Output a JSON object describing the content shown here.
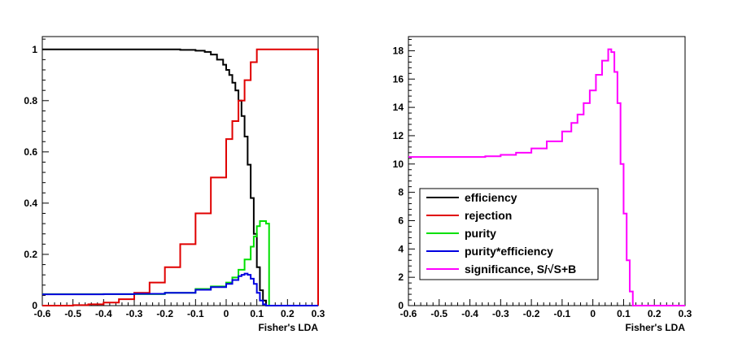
{
  "chart_data": [
    {
      "type": "line",
      "style": "step-histogram",
      "xlabel": "Fisher's LDA",
      "ylabel": "",
      "xlim": [
        -0.6,
        0.3
      ],
      "ylim": [
        0,
        1.05
      ],
      "xticks": [
        -0.6,
        -0.5,
        -0.4,
        -0.3,
        -0.2,
        -0.1,
        0,
        0.1,
        0.2,
        0.3
      ],
      "xtick_labels": [
        "-0.6",
        "-0.5",
        "-0.4",
        "-0.3",
        "-0.2",
        "-0.1",
        "0",
        "0.1",
        "0.2",
        "0.3"
      ],
      "yticks": [
        0,
        0.2,
        0.4,
        0.6,
        0.8,
        1
      ],
      "ytick_labels": [
        "0",
        "0.2",
        "0.4",
        "0.6",
        "0.8",
        "1"
      ],
      "grid": false,
      "series": [
        {
          "name": "efficiency",
          "color": "#000000",
          "x": [
            -0.6,
            -0.3,
            -0.2,
            -0.15,
            -0.1,
            -0.07,
            -0.05,
            -0.03,
            -0.01,
            0.0,
            0.01,
            0.02,
            0.03,
            0.04,
            0.05,
            0.06,
            0.07,
            0.08,
            0.09,
            0.1,
            0.11,
            0.12,
            0.13,
            0.14,
            0.3
          ],
          "y": [
            1.0,
            1.0,
            1.0,
            0.998,
            0.995,
            0.99,
            0.98,
            0.96,
            0.94,
            0.92,
            0.9,
            0.87,
            0.84,
            0.8,
            0.74,
            0.66,
            0.55,
            0.42,
            0.28,
            0.15,
            0.06,
            0.02,
            0.0,
            0.0,
            0.0
          ]
        },
        {
          "name": "rejection",
          "color": "#e00000",
          "x": [
            -0.6,
            -0.5,
            -0.45,
            -0.4,
            -0.35,
            -0.3,
            -0.25,
            -0.2,
            -0.15,
            -0.1,
            -0.05,
            0.0,
            0.02,
            0.04,
            0.06,
            0.08,
            0.1,
            0.12,
            0.2,
            0.29,
            0.3
          ],
          "y": [
            0.0,
            0.002,
            0.005,
            0.012,
            0.025,
            0.05,
            0.09,
            0.15,
            0.24,
            0.36,
            0.5,
            0.65,
            0.72,
            0.8,
            0.88,
            0.95,
            1.0,
            1.0,
            1.0,
            1.0,
            0.0
          ]
        },
        {
          "name": "purity",
          "color": "#00e000",
          "x": [
            -0.6,
            -0.4,
            -0.3,
            -0.2,
            -0.1,
            -0.05,
            0.0,
            0.02,
            0.04,
            0.06,
            0.08,
            0.09,
            0.1,
            0.11,
            0.12,
            0.13,
            0.14,
            0.15,
            0.3
          ],
          "y": [
            0.045,
            0.045,
            0.045,
            0.05,
            0.065,
            0.075,
            0.09,
            0.11,
            0.14,
            0.18,
            0.23,
            0.27,
            0.31,
            0.33,
            0.33,
            0.32,
            0.0,
            0.0,
            0.0
          ]
        },
        {
          "name": "purity*efficiency",
          "color": "#0000e0",
          "x": [
            -0.6,
            -0.4,
            -0.3,
            -0.2,
            -0.1,
            -0.05,
            0.0,
            0.02,
            0.04,
            0.05,
            0.06,
            0.07,
            0.08,
            0.09,
            0.1,
            0.11,
            0.12,
            0.13,
            0.14,
            0.3
          ],
          "y": [
            0.044,
            0.045,
            0.046,
            0.05,
            0.062,
            0.072,
            0.085,
            0.1,
            0.115,
            0.12,
            0.125,
            0.12,
            0.105,
            0.085,
            0.05,
            0.02,
            0.005,
            0.0,
            0.0,
            0.0
          ]
        }
      ]
    },
    {
      "type": "line",
      "style": "step-histogram",
      "xlabel": "Fisher's LDA",
      "ylabel": "",
      "xlim": [
        -0.6,
        0.3
      ],
      "ylim": [
        0,
        19
      ],
      "xticks": [
        -0.6,
        -0.5,
        -0.4,
        -0.3,
        -0.2,
        -0.1,
        0,
        0.1,
        0.2,
        0.3
      ],
      "xtick_labels": [
        "-0.6",
        "-0.5",
        "-0.4",
        "-0.3",
        "-0.2",
        "-0.1",
        "0",
        "0.1",
        "0.2",
        "0.3"
      ],
      "yticks": [
        0,
        2,
        4,
        6,
        8,
        10,
        12,
        14,
        16,
        18
      ],
      "ytick_labels": [
        "0",
        "2",
        "4",
        "6",
        "8",
        "10",
        "12",
        "14",
        "16",
        "18"
      ],
      "grid": false,
      "series": [
        {
          "name": "significance, S/√S+B",
          "color": "#ff00ff",
          "x": [
            -0.6,
            -0.45,
            -0.35,
            -0.3,
            -0.25,
            -0.2,
            -0.15,
            -0.1,
            -0.07,
            -0.05,
            -0.03,
            -0.01,
            0.01,
            0.03,
            0.05,
            0.06,
            0.07,
            0.08,
            0.09,
            0.1,
            0.11,
            0.12,
            0.13,
            0.14,
            0.3
          ],
          "y": [
            10.5,
            10.5,
            10.55,
            10.65,
            10.8,
            11.1,
            11.6,
            12.3,
            12.9,
            13.5,
            14.3,
            15.2,
            16.3,
            17.3,
            18.1,
            17.9,
            16.5,
            14.3,
            10.0,
            6.5,
            3.2,
            1.0,
            0.0,
            0.0,
            0.0
          ]
        }
      ],
      "legend": {
        "position": "lower-left",
        "entries": [
          {
            "label": "efficiency",
            "color": "#000000"
          },
          {
            "label": "rejection",
            "color": "#e00000"
          },
          {
            "label": "purity",
            "color": "#00e000"
          },
          {
            "label": "purity*efficiency",
            "color": "#0000e0"
          },
          {
            "label": "significance, S/√S+B",
            "color": "#ff00ff"
          }
        ]
      }
    }
  ]
}
